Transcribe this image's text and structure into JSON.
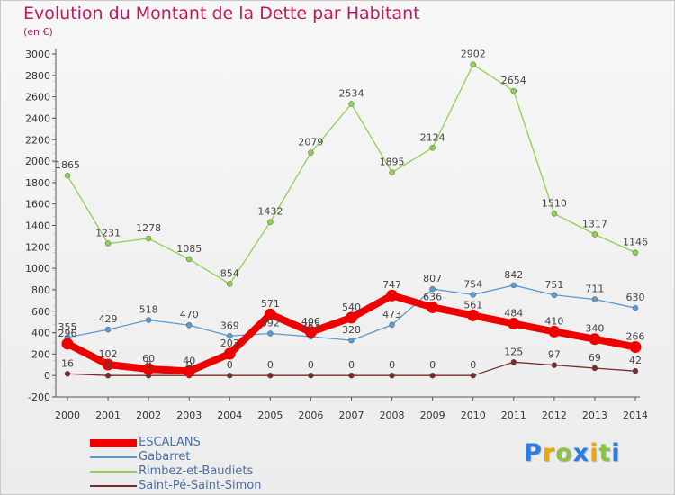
{
  "chart_data": {
    "type": "line",
    "title": "Evolution du Montant de la Dette par Habitant",
    "unit_label": "(en €)",
    "x": [
      "2000",
      "2001",
      "2002",
      "2003",
      "2004",
      "2005",
      "2006",
      "2007",
      "2008",
      "2009",
      "2010",
      "2011",
      "2012",
      "2013",
      "2014"
    ],
    "ylim": [
      -200,
      3000
    ],
    "yticks": [
      -200,
      0,
      200,
      400,
      600,
      800,
      1000,
      1200,
      1400,
      1600,
      1800,
      2000,
      2200,
      2400,
      2600,
      2800,
      3000
    ],
    "grid": false,
    "legend_position": "bottom-left",
    "series": [
      {
        "name": "ESCALANS",
        "color": "#ee0000",
        "emphasis": true,
        "values": [
          296,
          102,
          60,
          40,
          203,
          571,
          406,
          540,
          747,
          636,
          561,
          484,
          410,
          340,
          266
        ],
        "labels": [
          "296",
          "102",
          "60",
          "40",
          "203",
          "571",
          "406",
          "540",
          "747",
          "636",
          "561",
          "484",
          "410",
          "340",
          "266"
        ]
      },
      {
        "name": "Gabarret",
        "color": "#5a9bd5",
        "emphasis": false,
        "values": [
          355,
          429,
          518,
          470,
          369,
          392,
          363,
          328,
          473,
          807,
          754,
          842,
          751,
          711,
          630
        ],
        "labels": [
          "355",
          "429",
          "518",
          "470",
          "369",
          "392",
          "363",
          "328",
          "473",
          "807",
          "754",
          "842",
          "751",
          "711",
          "630"
        ]
      },
      {
        "name": "Rimbez-et-Baudiets",
        "color": "#8fd14f",
        "emphasis": false,
        "values": [
          1865,
          1231,
          1278,
          1085,
          854,
          1432,
          2079,
          2534,
          1895,
          2124,
          2902,
          2654,
          1510,
          1317,
          1146
        ],
        "labels": [
          "1865",
          "1231",
          "1278",
          "1085",
          "854",
          "1432",
          "2079",
          "2534",
          "1895",
          "2124",
          "2902",
          "2654",
          "1510",
          "1317",
          "1146"
        ]
      },
      {
        "name": "Saint-Pé-Saint-Simon",
        "color": "#7a2a2a",
        "emphasis": false,
        "values": [
          16,
          0,
          0,
          0,
          0,
          0,
          0,
          0,
          0,
          0,
          0,
          125,
          97,
          69,
          42
        ],
        "labels": [
          "16",
          "0",
          "0",
          "0",
          "0",
          "0",
          "0",
          "0",
          "0",
          "0",
          "0",
          "125",
          "97",
          "69",
          "42"
        ]
      }
    ]
  },
  "brand": {
    "letters": [
      "P",
      "r",
      "o",
      "x",
      "i",
      "t",
      "i"
    ],
    "colors": [
      "#2a7de1",
      "#f0a800",
      "#8bc34a",
      "#2a7de1",
      "#f0a800",
      "#8bc34a",
      "#2a7de1"
    ]
  }
}
